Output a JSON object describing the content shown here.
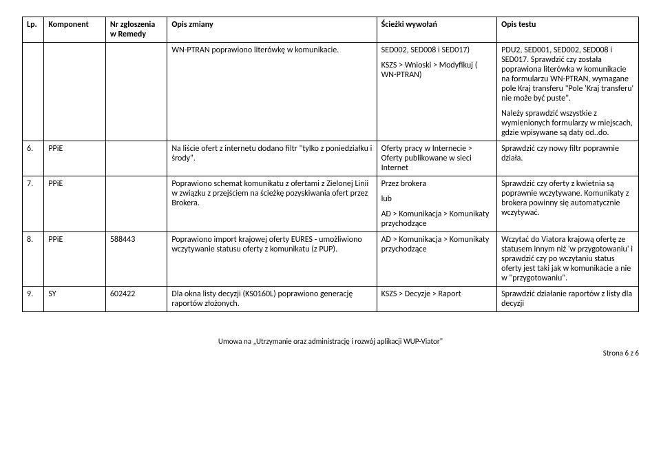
{
  "table": {
    "columns": [
      "Lp.",
      "Komponent",
      "Nr zgłoszenia w Remedy",
      "Opis zmiany",
      "Ścieżki wywołań",
      "Opis testu"
    ],
    "rows": [
      {
        "lp": "",
        "komp": "",
        "nr": "",
        "opis": "WN-PTRAN poprawiono literówkę w komunikacie.",
        "sc_p1": "SED002, SED008 i SED017)",
        "sc_p2": "KSZS > Wnioski > Modyfikuj ( WN-PTRAN)",
        "ot_p1": "PDU2, SED001, SED002, SED008 i SED017. Sprawdzić czy została poprawiona literówka w komunikacie na formularzu WN-PTRAN, wymagane pole Kraj transferu \"Pole 'Kraj transferu' nie może być puste\".",
        "ot_p2": "Należy sprawdzić wszystkie z wymienionych formularzy w miejscach, gdzie wpisywane są daty od..do."
      },
      {
        "lp": "6.",
        "komp": "PPiE",
        "nr": "",
        "opis": "Na liście ofert z internetu dodano filtr \"tylko z poniedziałku i środy\".",
        "sc_p1": "Oferty pracy w Internecie > Oferty publikowane w sieci Internet",
        "ot_p1": "Sprawdzić czy nowy filtr poprawnie działa."
      },
      {
        "lp": "7.",
        "komp": "PPiE",
        "nr": "",
        "opis": "Poprawiono schemat komunikatu z ofertami z Zielonej Linii w związku z przejściem na ścieżkę pozyskiwania ofert przez Brokera.",
        "sc_p1": "Przez brokera",
        "sc_p2": "lub",
        "sc_p3": "AD > Komunikacja > Komunikaty przychodzące",
        "ot_p1": "Sprawdzić czy oferty z kwietnia są poprawnie wczytywane. Komunikaty z brokera powinny się automatycznie wczytywać."
      },
      {
        "lp": "8.",
        "komp": "PPiE",
        "nr": "588443",
        "opis": "Poprawiono import krajowej oferty EURES - umożliwiono wczytywanie statusu oferty z komunikatu (z PUP).",
        "sc_p1": "AD > Komunikacja > Komunikaty przychodzące",
        "ot_p1": "Wczytać do Viatora krajową ofertę ze statusem innym niż 'w przygotowaniu' i sprawdzić czy po wczytaniu status oferty jest taki jak w komunikacie a nie w \"przygotowaniu\"."
      },
      {
        "lp": "9.",
        "komp": "SY",
        "nr": "602422",
        "opis": "Dla okna listy decyzji (KS0160L) poprawiono generację raportów złożonych.",
        "sc_p1": "KSZS > Decyzje > Raport",
        "ot_p1": "Sprawdzić działanie raportów z listy dla decyzji"
      }
    ]
  },
  "footer": {
    "center": "Umowa na „Utrzymanie oraz administrację i rozwój aplikacji WUP-Viator\"",
    "right": "Strona 6 z 6"
  }
}
